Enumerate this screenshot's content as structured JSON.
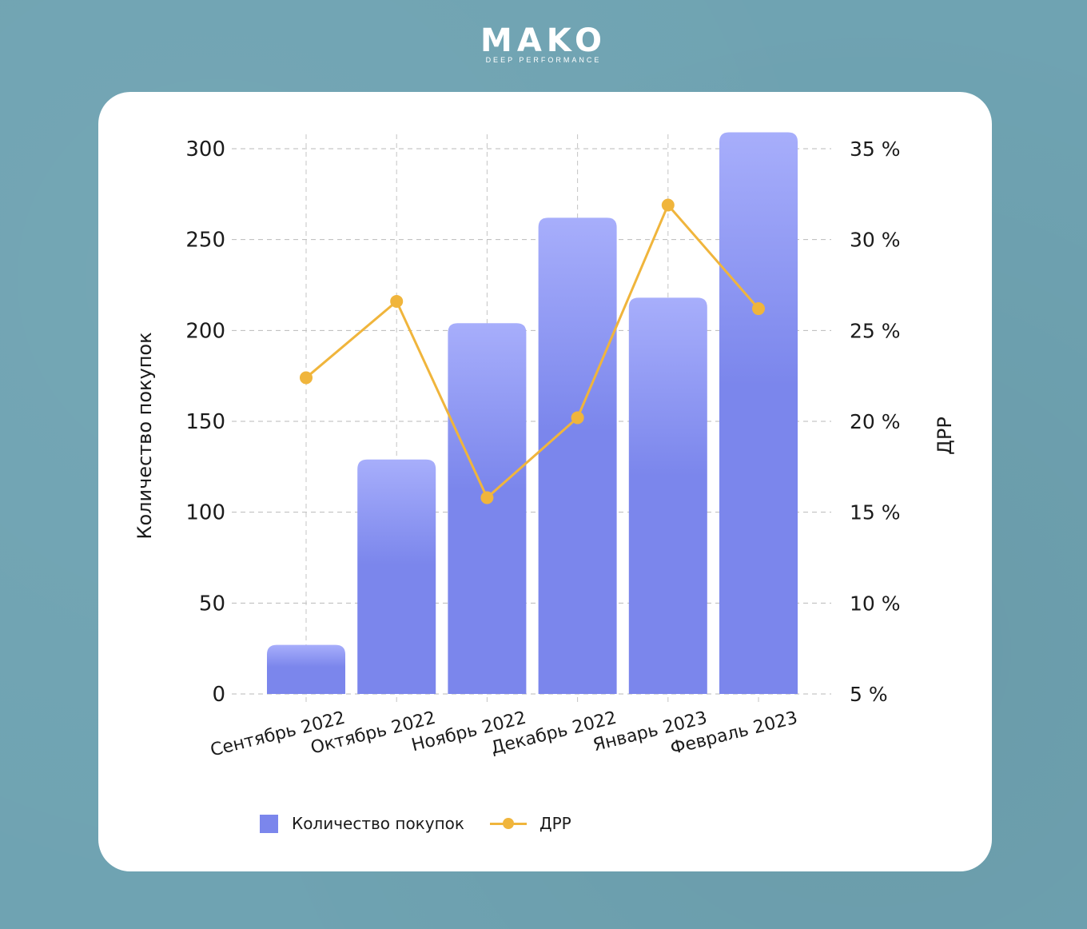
{
  "brand": {
    "name": "MAKO",
    "tagline": "DEEP PERFORMANCE"
  },
  "chart_data": {
    "type": "bar",
    "categories": [
      "Сентябрь 2022",
      "Октябрь 2022",
      "Ноябрь 2022",
      "Декабрь 2022",
      "Январь 2023",
      "Февраль 2023"
    ],
    "series": [
      {
        "name": "Количество покупок",
        "type": "bar",
        "axis": "left",
        "color": "#7b86ec",
        "values": [
          27,
          129,
          204,
          262,
          218,
          309
        ]
      },
      {
        "name": "ДРР",
        "type": "line",
        "axis": "right",
        "color": "#f0b53c",
        "values": [
          22.4,
          26.6,
          15.8,
          20.2,
          31.9,
          26.2
        ]
      }
    ],
    "ylabel": "Количество покупок",
    "y2label": "ДРР",
    "ylim": [
      0,
      300
    ],
    "y2lim": [
      5,
      35
    ],
    "yticks": [
      "0",
      "50",
      "100",
      "150",
      "200",
      "250",
      "300"
    ],
    "y2ticks": [
      "5 %",
      "10 %",
      "15 %",
      "20 %",
      "25 %",
      "30 %",
      "35 %"
    ],
    "grid": true,
    "legend_position": "bottom",
    "legend": [
      "Количество покупок",
      "ДРР"
    ]
  }
}
